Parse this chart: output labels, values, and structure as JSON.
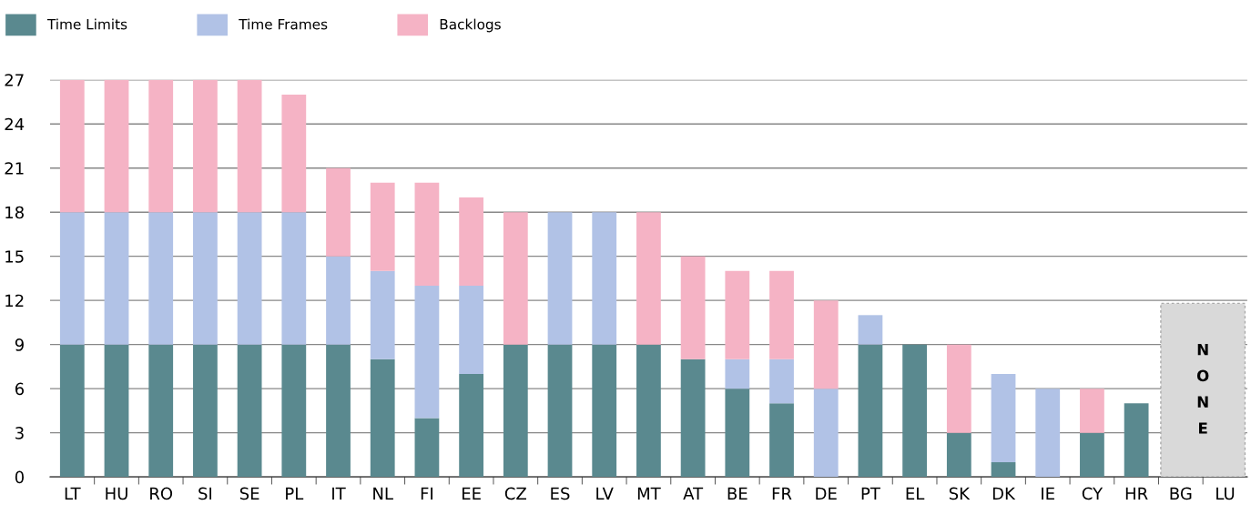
{
  "chart_data": {
    "type": "bar",
    "stacked": true,
    "legend": "top left",
    "grid": "y",
    "categories": [
      "LT",
      "HU",
      "RO",
      "SI",
      "SE",
      "PL",
      "IT",
      "NL",
      "FI",
      "EE",
      "CZ",
      "ES",
      "LV",
      "MT",
      "AT",
      "BE",
      "FR",
      "DE",
      "PT",
      "EL",
      "SK",
      "DK",
      "IE",
      "CY",
      "HR",
      "BG",
      "LU"
    ],
    "series": [
      {
        "name": "Time Limits",
        "color": "#5a898f",
        "values": [
          9,
          9,
          9,
          9,
          9,
          9,
          9,
          8,
          4,
          7,
          9,
          9,
          9,
          9,
          8,
          6,
          5,
          0,
          9,
          9,
          3,
          1,
          0,
          3,
          5,
          0,
          0
        ]
      },
      {
        "name": "Time Frames",
        "color": "#b1c2e6",
        "values": [
          9,
          9,
          9,
          9,
          9,
          9,
          6,
          6,
          9,
          6,
          0,
          9,
          9,
          0,
          0,
          2,
          3,
          6,
          2,
          0,
          0,
          6,
          6,
          0,
          0,
          0,
          0
        ]
      },
      {
        "name": "Backlogs",
        "color": "#f5b3c5",
        "values": [
          9,
          9,
          9,
          9,
          9,
          8,
          6,
          6,
          7,
          6,
          9,
          0,
          0,
          9,
          7,
          6,
          6,
          6,
          0,
          0,
          6,
          0,
          0,
          3,
          0,
          0,
          0
        ]
      }
    ],
    "ylim": [
      0,
      27
    ],
    "yticks": [
      0,
      3,
      6,
      9,
      12,
      15,
      18,
      21,
      24,
      27
    ],
    "annotations": [
      "NONE"
    ]
  }
}
